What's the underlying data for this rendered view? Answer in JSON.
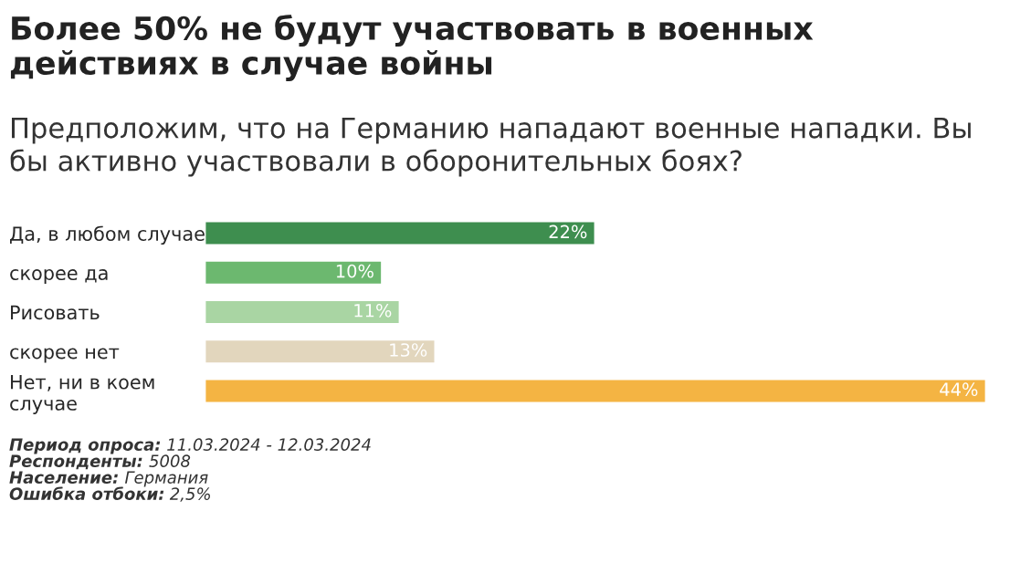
{
  "chart_data": {
    "type": "bar",
    "orientation": "horizontal",
    "title": "Более 50% не будут участвовать в военных действиях в случае войны",
    "subtitle": "Предположим, что на Германию нападают военные нападки. Вы бы активно участвовали в оборонительных боях?",
    "categories": [
      "Да, в любом случае",
      "скорее да",
      "Рисовать",
      "скорее нет",
      "Нет, ни в коем\nслучае"
    ],
    "values": [
      22,
      10,
      11,
      13,
      44
    ],
    "colors": [
      "#3e8e4f",
      "#6cb86f",
      "#a9d5a3",
      "#e2d6bd",
      "#f4b443"
    ],
    "value_labels": [
      "22%",
      "10%",
      "11%",
      "13%",
      "44%"
    ],
    "grid": false,
    "legend": false,
    "annotations": [
      "Период опроса: 11.03.2024 - 12.03.2024",
      "Респонденты: 5008",
      "Население: Германия",
      "Ошибка отбоки: 2,5%"
    ]
  }
}
